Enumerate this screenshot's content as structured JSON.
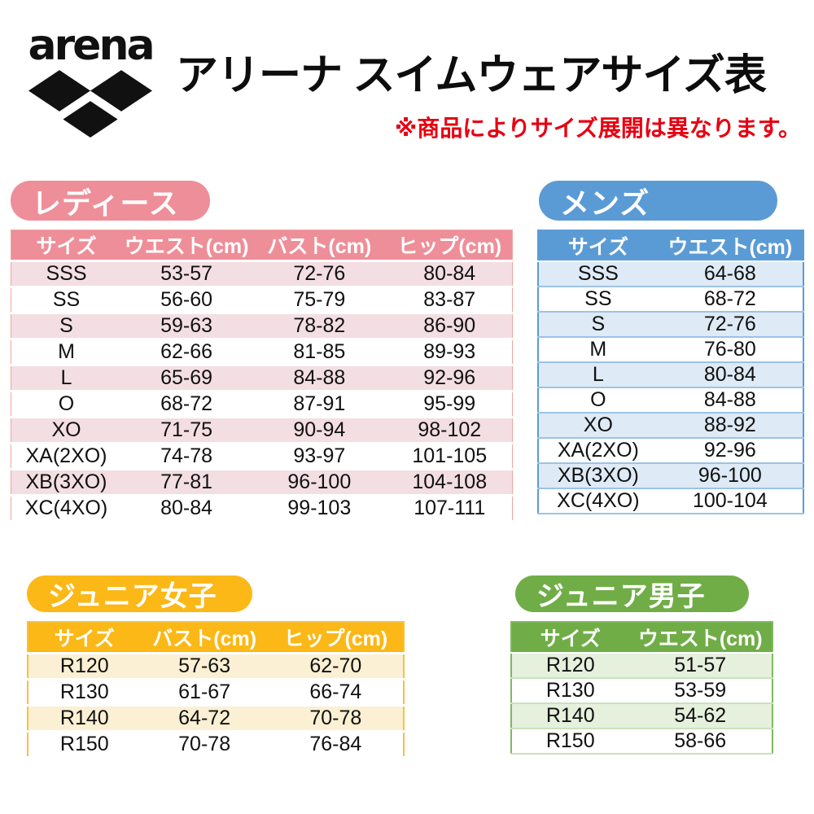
{
  "page": {
    "brand": "arena",
    "title": "アリーナ スイムウェアサイズ表",
    "note": "※商品によりサイズ展開は異なります。"
  },
  "colors": {
    "ladies": "#EE8E99",
    "ladies_light": "#F3DEE3",
    "ladies_border": "#F0A49E",
    "mens": "#5B9BD5",
    "mens_light": "#DEEAF6",
    "mens_sep": "#9DC3E6",
    "junior_girls": "#FBB816",
    "junior_girls_light": "#FBF0D3",
    "junior_girls_border": "#F5C23C",
    "junior_boys": "#70AD47",
    "junior_boys_light": "#E5F0DD",
    "junior_boys_sep": "#C9E2BB",
    "junior_boys_border": "#7FB95E",
    "note_red": "#E60012",
    "logo_black": "#111111"
  },
  "tables": {
    "ladies": {
      "label": "レディース",
      "headers": [
        "サイズ",
        "ウエスト(cm)",
        "バスト(cm)",
        "ヒップ(cm)"
      ],
      "rows": [
        [
          "SSS",
          "53-57",
          "72-76",
          "80-84"
        ],
        [
          "SS",
          "56-60",
          "75-79",
          "83-87"
        ],
        [
          "S",
          "59-63",
          "78-82",
          "86-90"
        ],
        [
          "M",
          "62-66",
          "81-85",
          "89-93"
        ],
        [
          "L",
          "65-69",
          "84-88",
          "92-96"
        ],
        [
          "O",
          "68-72",
          "87-91",
          "95-99"
        ],
        [
          "XO",
          "71-75",
          "90-94",
          "98-102"
        ],
        [
          "XA(2XO)",
          "74-78",
          "93-97",
          "101-105"
        ],
        [
          "XB(3XO)",
          "77-81",
          "96-100",
          "104-108"
        ],
        [
          "XC(4XO)",
          "80-84",
          "99-103",
          "107-111"
        ]
      ]
    },
    "mens": {
      "label": "メンズ",
      "headers": [
        "サイズ",
        "ウエスト(cm)"
      ],
      "rows": [
        [
          "SSS",
          "64-68"
        ],
        [
          "SS",
          "68-72"
        ],
        [
          "S",
          "72-76"
        ],
        [
          "M",
          "76-80"
        ],
        [
          "L",
          "80-84"
        ],
        [
          "O",
          "84-88"
        ],
        [
          "XO",
          "88-92"
        ],
        [
          "XA(2XO)",
          "92-96"
        ],
        [
          "XB(3XO)",
          "96-100"
        ],
        [
          "XC(4XO)",
          "100-104"
        ]
      ]
    },
    "junior_girls": {
      "label": "ジュニア女子",
      "headers": [
        "サイズ",
        "バスト(cm)",
        "ヒップ(cm)"
      ],
      "rows": [
        [
          "R120",
          "57-63",
          "62-70"
        ],
        [
          "R130",
          "61-67",
          "66-74"
        ],
        [
          "R140",
          "64-72",
          "70-78"
        ],
        [
          "R150",
          "70-78",
          "76-84"
        ]
      ]
    },
    "junior_boys": {
      "label": "ジュニア男子",
      "headers": [
        "サイズ",
        "ウエスト(cm)"
      ],
      "rows": [
        [
          "R120",
          "51-57"
        ],
        [
          "R130",
          "53-59"
        ],
        [
          "R140",
          "54-62"
        ],
        [
          "R150",
          "58-66"
        ]
      ]
    }
  }
}
